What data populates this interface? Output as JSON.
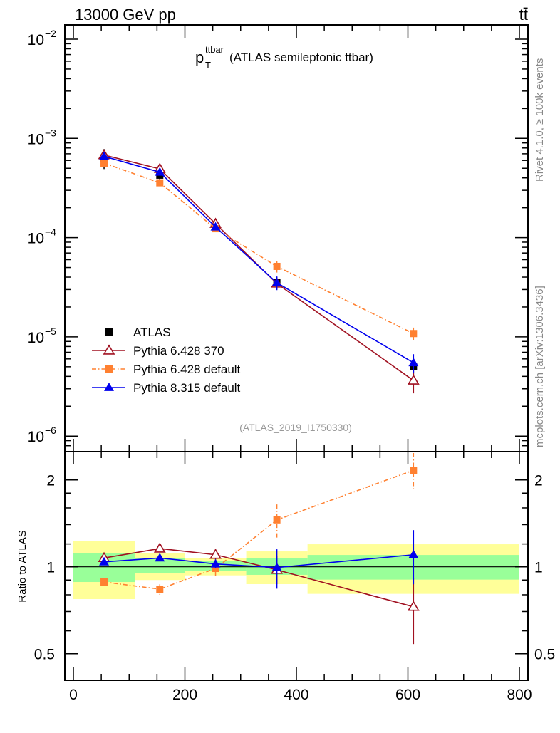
{
  "chart_data": [
    {
      "type": "line",
      "title": "p_T^ttbar (ATLAS semileptonic ttbar)",
      "title_main": "p",
      "title_sub": "T",
      "title_sup": "ttbar",
      "title_rest": "(ATLAS semileptonic ttbar)",
      "header_left": "13000 GeV pp",
      "header_right": "tt̄",
      "side_text_1": "Rivet 4.1.0, ≥ 100k events",
      "side_text_2": "mcplots.cern.ch [arXiv:1306.3436]",
      "watermark": "(ATLAS_2019_I1750330)",
      "yscale": "log",
      "ylim": [
        7e-07,
        0.0139
      ],
      "xlim": [
        -15,
        815
      ],
      "ytick_labels": [
        {
          "base": "10",
          "exp": "−2",
          "v": 0.01
        },
        {
          "base": "10",
          "exp": "−3",
          "v": 0.001
        },
        {
          "base": "10",
          "exp": "−4",
          "v": 0.0001
        },
        {
          "base": "10",
          "exp": "−5",
          "v": 1e-05
        },
        {
          "base": "10",
          "exp": "−6",
          "v": 1e-06
        }
      ],
      "legend_position": "bottom-left",
      "x": [
        55,
        155,
        255,
        365,
        610
      ],
      "bins": [
        [
          0,
          110
        ],
        [
          110,
          200
        ],
        [
          200,
          310
        ],
        [
          310,
          420
        ],
        [
          420,
          800
        ]
      ],
      "series": [
        {
          "name": "ATLAS",
          "color": "#000000",
          "marker": "square",
          "values": [
            0.000635,
            0.000426,
            0.000125,
            3.53e-05,
            4.99e-06
          ],
          "err_up": [
            0.000146,
            4.9e-05,
            8.6e-06,
            4.6e-06,
            9.8e-07
          ],
          "err_dn": [
            0.000144,
            4.3e-05,
            8.3e-06,
            4.6e-06,
            9.7e-07
          ]
        },
        {
          "name": "Pythia 6.428 370",
          "color": "#a01020",
          "marker": "open-triangle",
          "dash": "",
          "values": [
            0.00068,
            0.000493,
            0.000138,
            3.45e-05,
            3.63e-06
          ],
          "err_up": [
            1e-05,
            1e-05,
            4e-06,
            4.5e-06,
            9.5e-07
          ],
          "err_dn": [
            1e-05,
            1e-05,
            4e-06,
            4.5e-06,
            9.3e-07
          ]
        },
        {
          "name": "Pythia 6.428 default",
          "color": "#ff8030",
          "marker": "square",
          "dash": "6,3,1.5,3",
          "values": [
            0.000563,
            0.000357,
            0.000123,
            5.13e-05,
            1.08e-05
          ],
          "err_up": [
            1e-05,
            1e-05,
            4e-06,
            6.8e-06,
            1.6e-06
          ],
          "err_dn": [
            1e-05,
            1e-05,
            4e-06,
            6.8e-06,
            1.6e-06
          ]
        },
        {
          "name": "Pythia 8.315 default",
          "color": "#0000ee",
          "marker": "triangle",
          "dash": "",
          "values": [
            0.00066,
            0.000457,
            0.000128,
            3.51e-05,
            5.49e-06
          ],
          "err_up": [
            1e-05,
            1e-05,
            4e-06,
            5.5e-06,
            1.2e-06
          ],
          "err_dn": [
            1e-05,
            1e-05,
            4e-06,
            5.5e-06,
            1.2e-06
          ]
        }
      ]
    },
    {
      "type": "line",
      "ylabel": "Ratio to ATLAS",
      "yscale": "log",
      "ylim": [
        0.405,
        2.5
      ],
      "xlim": [
        -15,
        815
      ],
      "ytick_labels": [
        {
          "label": "2",
          "v": 2
        },
        {
          "label": "1",
          "v": 1
        },
        {
          "label": "0.5",
          "v": 0.5
        }
      ],
      "xtick_labels": [
        {
          "label": "0",
          "v": 0
        },
        {
          "label": "200",
          "v": 200
        },
        {
          "label": "400",
          "v": 400
        },
        {
          "label": "600",
          "v": 600
        },
        {
          "label": "800",
          "v": 800
        }
      ],
      "band_yellow": [
        [
          0.773,
          1.23
        ],
        [
          0.9,
          1.114
        ],
        [
          0.934,
          1.069
        ],
        [
          0.871,
          1.131
        ],
        [
          0.806,
          1.197
        ]
      ],
      "band_green": [
        [
          0.886,
          1.118
        ],
        [
          0.949,
          1.069
        ],
        [
          0.965,
          1.045
        ],
        [
          0.938,
          1.069
        ],
        [
          0.903,
          1.099
        ]
      ],
      "band_colors": {
        "yellow": "#ffff99",
        "green": "#99ff99"
      },
      "series": [
        {
          "name": "Pythia 6.428 370",
          "values": [
            1.073,
            1.157,
            1.101,
            0.976,
            0.727
          ],
          "lo": [
            1.05,
            1.13,
            1.06,
            0.87,
            0.54
          ],
          "hi": [
            1.1,
            1.19,
            1.15,
            1.09,
            0.917
          ]
        },
        {
          "name": "Pythia 6.428 default",
          "values": [
            0.886,
            0.837,
            0.987,
            1.454,
            2.16
          ],
          "lo": [
            0.86,
            0.8,
            0.93,
            1.262,
            1.82
          ],
          "hi": [
            0.91,
            0.87,
            1.04,
            1.645,
            2.6
          ]
        },
        {
          "name": "Pythia 8.315 default",
          "values": [
            1.04,
            1.073,
            1.023,
            0.994,
            1.101
          ],
          "lo": [
            1.02,
            1.05,
            0.99,
            0.84,
            0.87
          ],
          "hi": [
            1.06,
            1.1,
            1.06,
            1.15,
            1.34
          ]
        }
      ]
    }
  ]
}
